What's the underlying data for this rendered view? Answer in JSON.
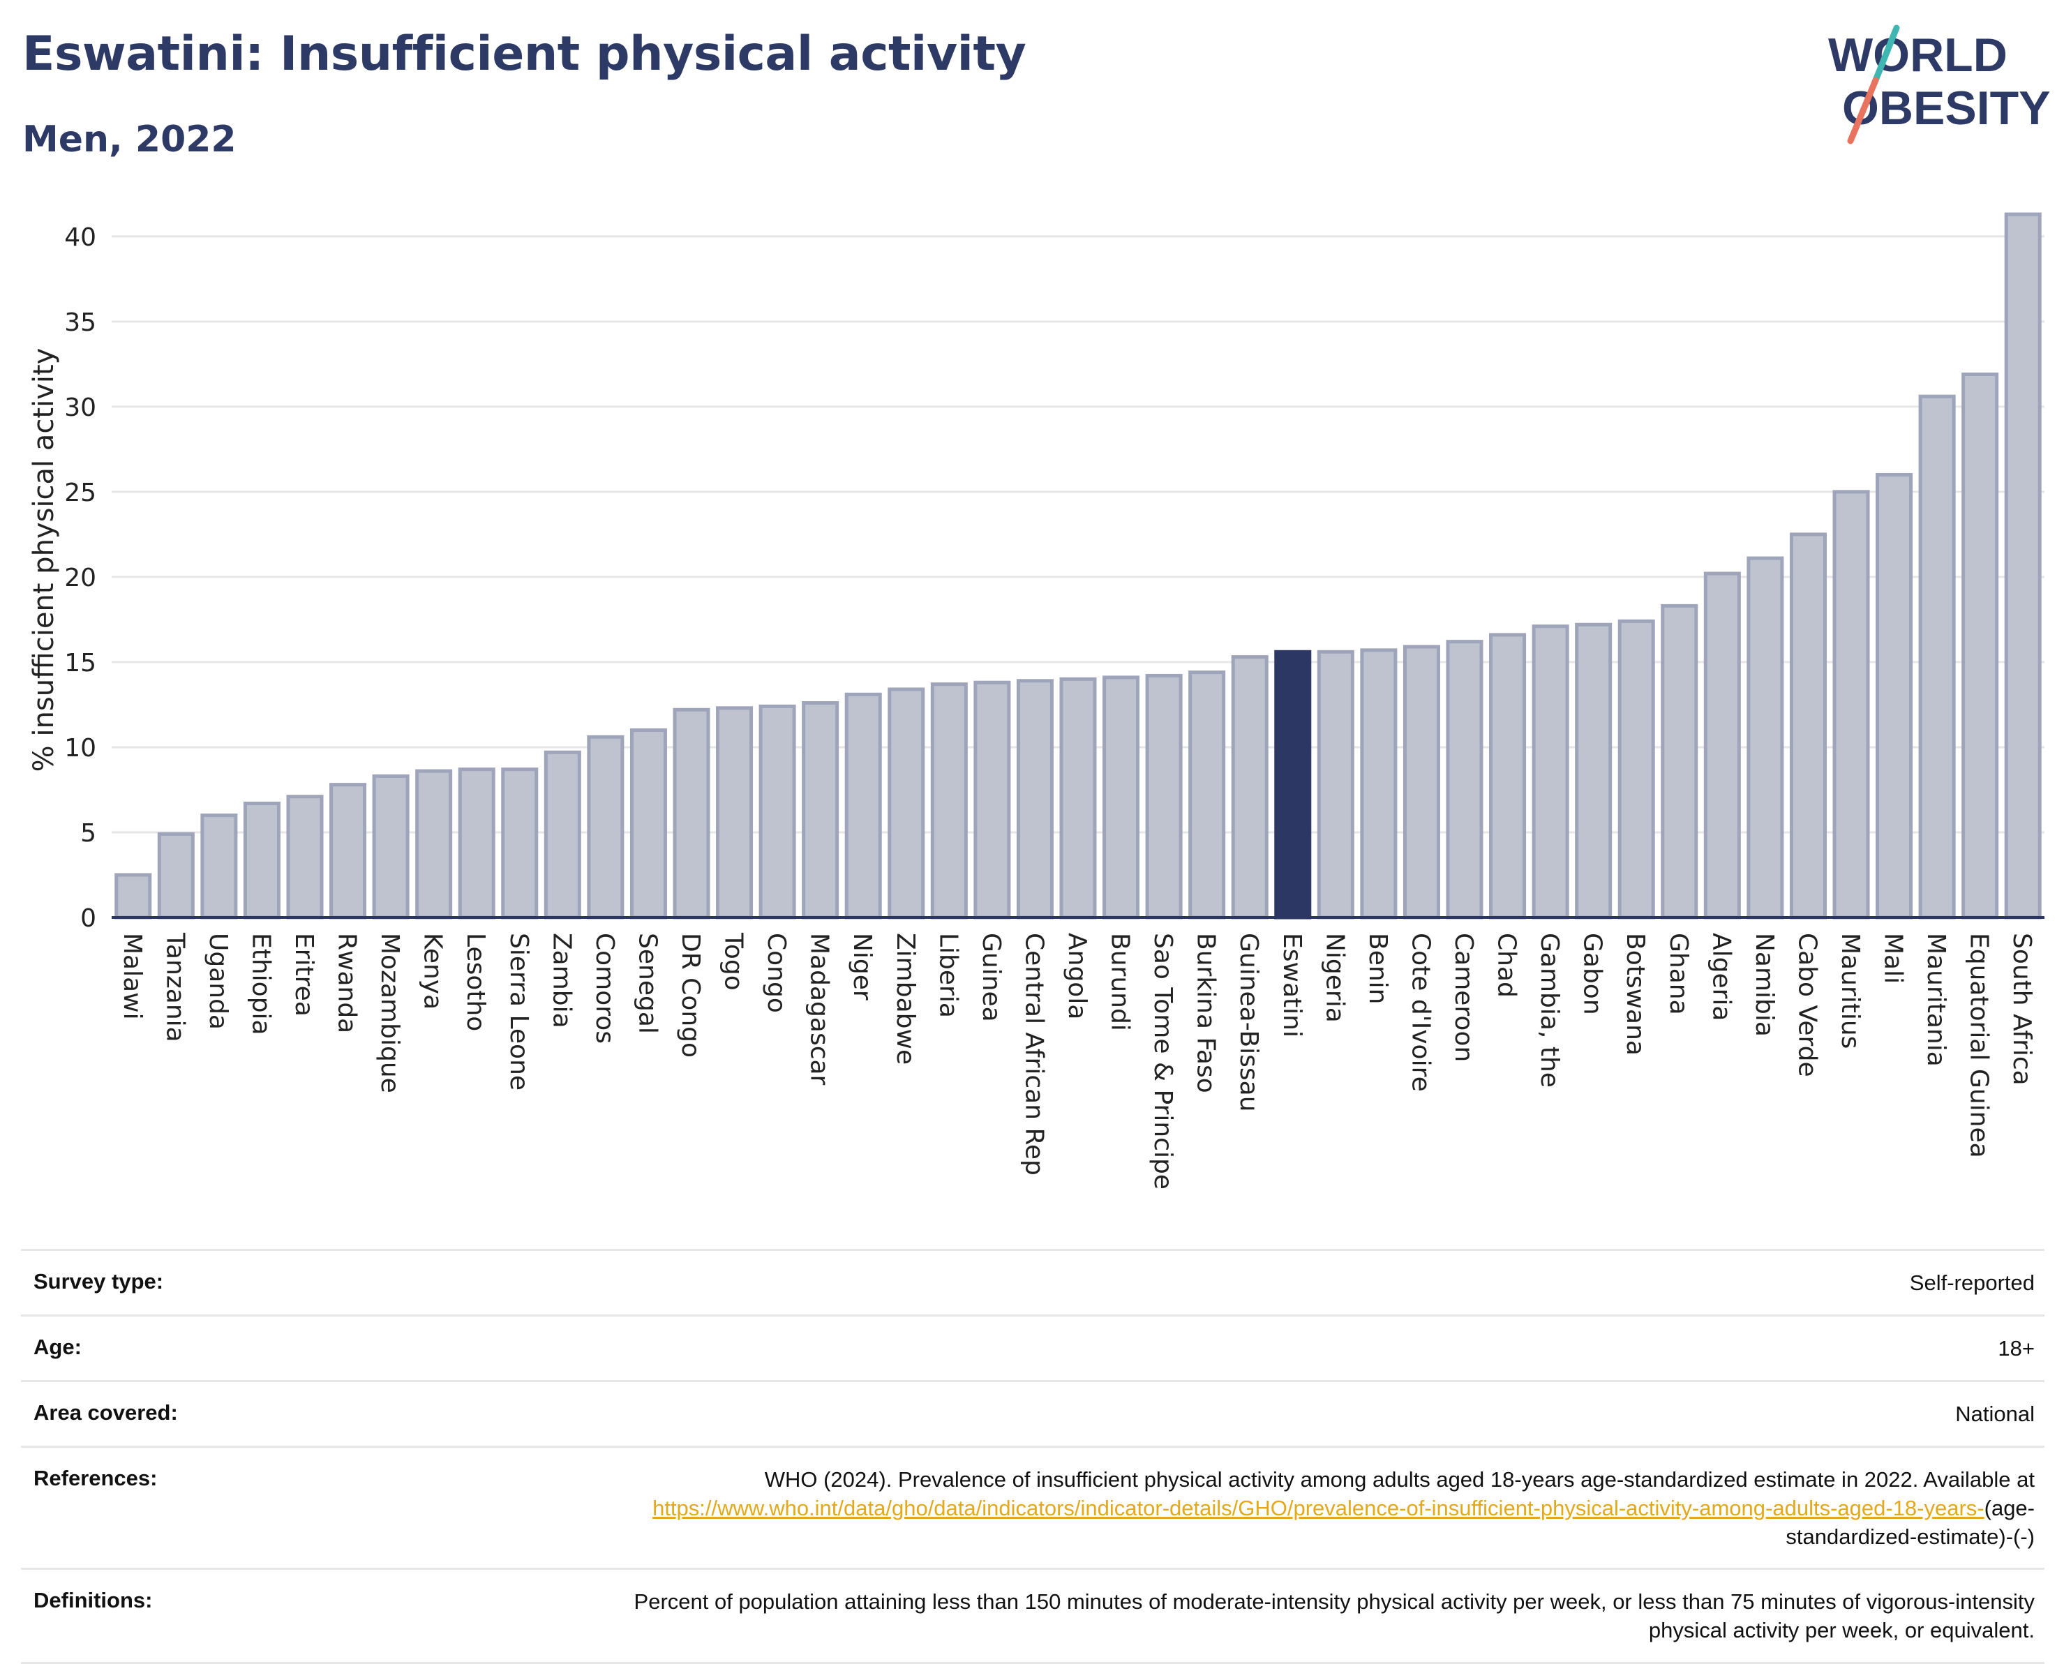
{
  "header": {
    "title": "Eswatini: Insufficient physical activity",
    "subtitle": "Men, 2022"
  },
  "logo": {
    "line1": "WORLD",
    "line2": "OBESITY",
    "colors": {
      "text": "#2e3a66",
      "slash_top": "#3fb6b2",
      "slash_bottom": "#e8735e"
    }
  },
  "chart_data": {
    "type": "bar",
    "ylabel": "% insufficient physical activity",
    "xlabel": "",
    "ylim": [
      0,
      42
    ],
    "yticks": [
      0,
      5,
      10,
      15,
      20,
      25,
      30,
      35,
      40
    ],
    "grid": true,
    "highlight": "Eswatini",
    "colors": {
      "bar": "#bfc3d0",
      "bar_edge": "#9ea4b9",
      "highlight": "#2c3764",
      "grid": "#e6e6e6",
      "axis": "#2c3764"
    },
    "categories": [
      "Malawi",
      "Tanzania",
      "Uganda",
      "Ethiopia",
      "Eritrea",
      "Rwanda",
      "Mozambique",
      "Kenya",
      "Lesotho",
      "Sierra Leone",
      "Zambia",
      "Comoros",
      "Senegal",
      "DR Congo",
      "Togo",
      "Congo",
      "Madagascar",
      "Niger",
      "Zimbabwe",
      "Liberia",
      "Guinea",
      "Central African Rep",
      "Angola",
      "Burundi",
      "Sao Tome & Principe",
      "Burkina Faso",
      "Guinea-Bissau",
      "Eswatini",
      "Nigeria",
      "Benin",
      "Cote d'Ivoire",
      "Cameroon",
      "Chad",
      "Gambia, the",
      "Gabon",
      "Botswana",
      "Ghana",
      "Algeria",
      "Namibia",
      "Cabo Verde",
      "Mauritius",
      "Mali",
      "Mauritania",
      "Equatorial Guinea",
      "South Africa"
    ],
    "values": [
      2.5,
      4.9,
      6.0,
      6.7,
      7.1,
      7.8,
      8.3,
      8.6,
      8.7,
      8.7,
      9.7,
      10.6,
      11.0,
      12.2,
      12.3,
      12.4,
      12.6,
      13.1,
      13.4,
      13.7,
      13.8,
      13.9,
      14.0,
      14.1,
      14.2,
      14.4,
      15.3,
      15.6,
      15.6,
      15.7,
      15.9,
      16.2,
      16.6,
      17.1,
      17.2,
      17.4,
      18.3,
      20.2,
      21.1,
      22.5,
      25.0,
      26.0,
      30.6,
      31.9,
      41.3
    ]
  },
  "info": {
    "survey_type": {
      "label": "Survey type:",
      "value": "Self-reported"
    },
    "age": {
      "label": "Age:",
      "value": "18+"
    },
    "area": {
      "label": "Area covered:",
      "value": "National"
    },
    "references": {
      "label": "References:",
      "text": "WHO (2024). Prevalence of insufficient physical activity among adults aged 18-years age-standardized estimate in 2022. Available at",
      "link": "https://www.who.int/data/gho/data/indicators/indicator-details/GHO/prevalence-of-insufficient-physical-activity-among-adults-aged-18-years-",
      "suffix": "(age-standardized-estimate)-(-)"
    },
    "definitions": {
      "label": "Definitions:",
      "value": "Percent of population attaining less than 150 minutes of moderate-intensity physical activity per week, or less than 75 minutes of vigorous-intensity physical activity per week, or equivalent."
    }
  }
}
